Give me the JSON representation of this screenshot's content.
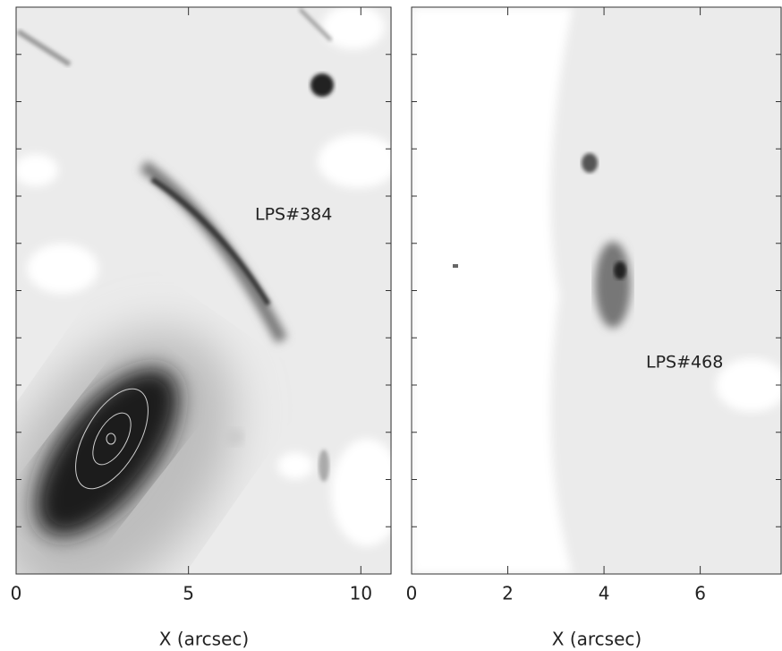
{
  "chart_data": [
    {
      "type": "image",
      "annotation": "LPS#384",
      "xlabel": "X (arcsec)",
      "xlim": [
        0,
        10.9
      ],
      "xticks": [
        0,
        5,
        10
      ]
    },
    {
      "type": "image",
      "annotation": "LPS#468",
      "xlabel": "X (arcsec)",
      "xlim": [
        0,
        7.7
      ],
      "xticks": [
        0,
        2,
        4,
        6
      ]
    }
  ]
}
